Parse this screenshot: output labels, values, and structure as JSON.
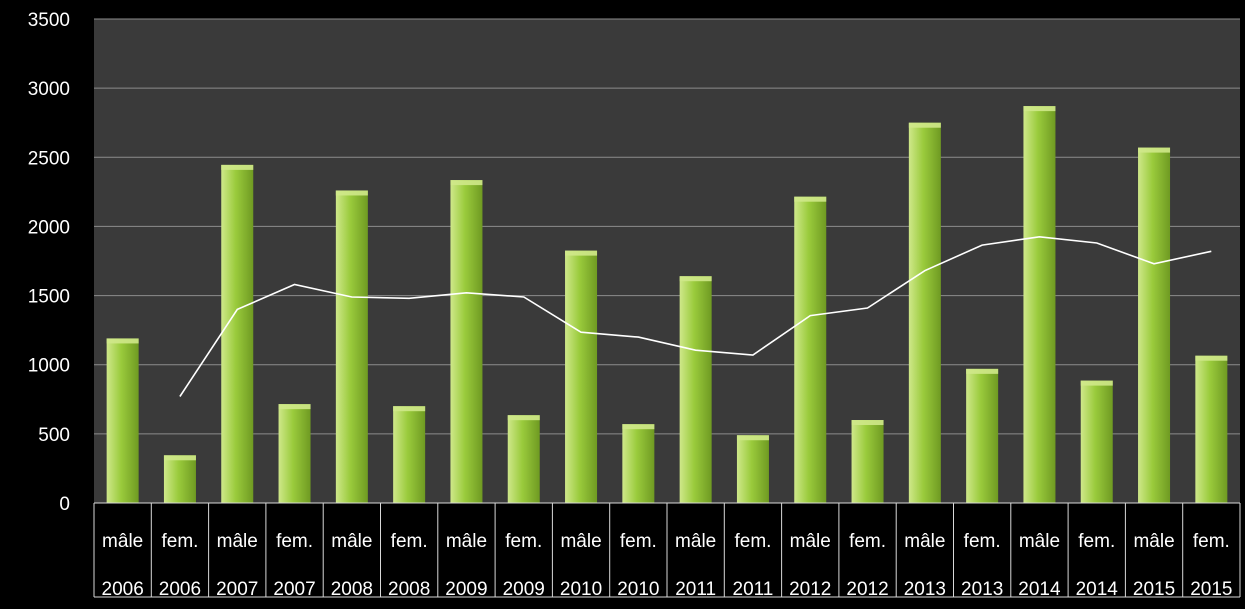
{
  "chart_data": {
    "type": "bar",
    "categories": [
      {
        "label": "mâle",
        "year": "2006"
      },
      {
        "label": "fem.",
        "year": "2006"
      },
      {
        "label": "mâle",
        "year": "2007"
      },
      {
        "label": "fem.",
        "year": "2007"
      },
      {
        "label": "mâle",
        "year": "2008"
      },
      {
        "label": "fem.",
        "year": "2008"
      },
      {
        "label": "mâle",
        "year": "2009"
      },
      {
        "label": "fem.",
        "year": "2009"
      },
      {
        "label": "mâle",
        "year": "2010"
      },
      {
        "label": "fem.",
        "year": "2010"
      },
      {
        "label": "mâle",
        "year": "2011"
      },
      {
        "label": "fem.",
        "year": "2011"
      },
      {
        "label": "mâle",
        "year": "2012"
      },
      {
        "label": "fem.",
        "year": "2012"
      },
      {
        "label": "mâle",
        "year": "2013"
      },
      {
        "label": "fem.",
        "year": "2013"
      },
      {
        "label": "mâle",
        "year": "2014"
      },
      {
        "label": "fem.",
        "year": "2014"
      },
      {
        "label": "mâle",
        "year": "2015"
      },
      {
        "label": "fem.",
        "year": "2015"
      }
    ],
    "series": [
      {
        "type": "bar",
        "values": [
          1190,
          345,
          2445,
          715,
          2260,
          700,
          2335,
          635,
          1825,
          570,
          1640,
          490,
          2215,
          600,
          2750,
          970,
          2870,
          885,
          2570,
          1065
        ]
      },
      {
        "type": "line",
        "start_index": 1,
        "values": [
          null,
          770,
          1400,
          1580,
          1490,
          1480,
          1520,
          1490,
          1235,
          1200,
          1105,
          1070,
          1355,
          1410,
          1680,
          1865,
          1925,
          1880,
          1730,
          1820
        ]
      }
    ],
    "yticks": [
      0,
      500,
      1000,
      1500,
      2000,
      2500,
      3000,
      3500
    ],
    "ylim": [
      0,
      3500
    ],
    "title": "",
    "xlabel": "",
    "ylabel": "",
    "grid": true,
    "colors": {
      "background": "#000000",
      "plot_area": "#3a3a3a",
      "gridline": "#8c8c8c",
      "bar_light": "#cfe88a",
      "bar_mid": "#9acb3c",
      "bar_dark": "#6f9a22",
      "line": "#ffffff",
      "text": "#ffffff",
      "table_border": "#d9d9d9"
    }
  }
}
